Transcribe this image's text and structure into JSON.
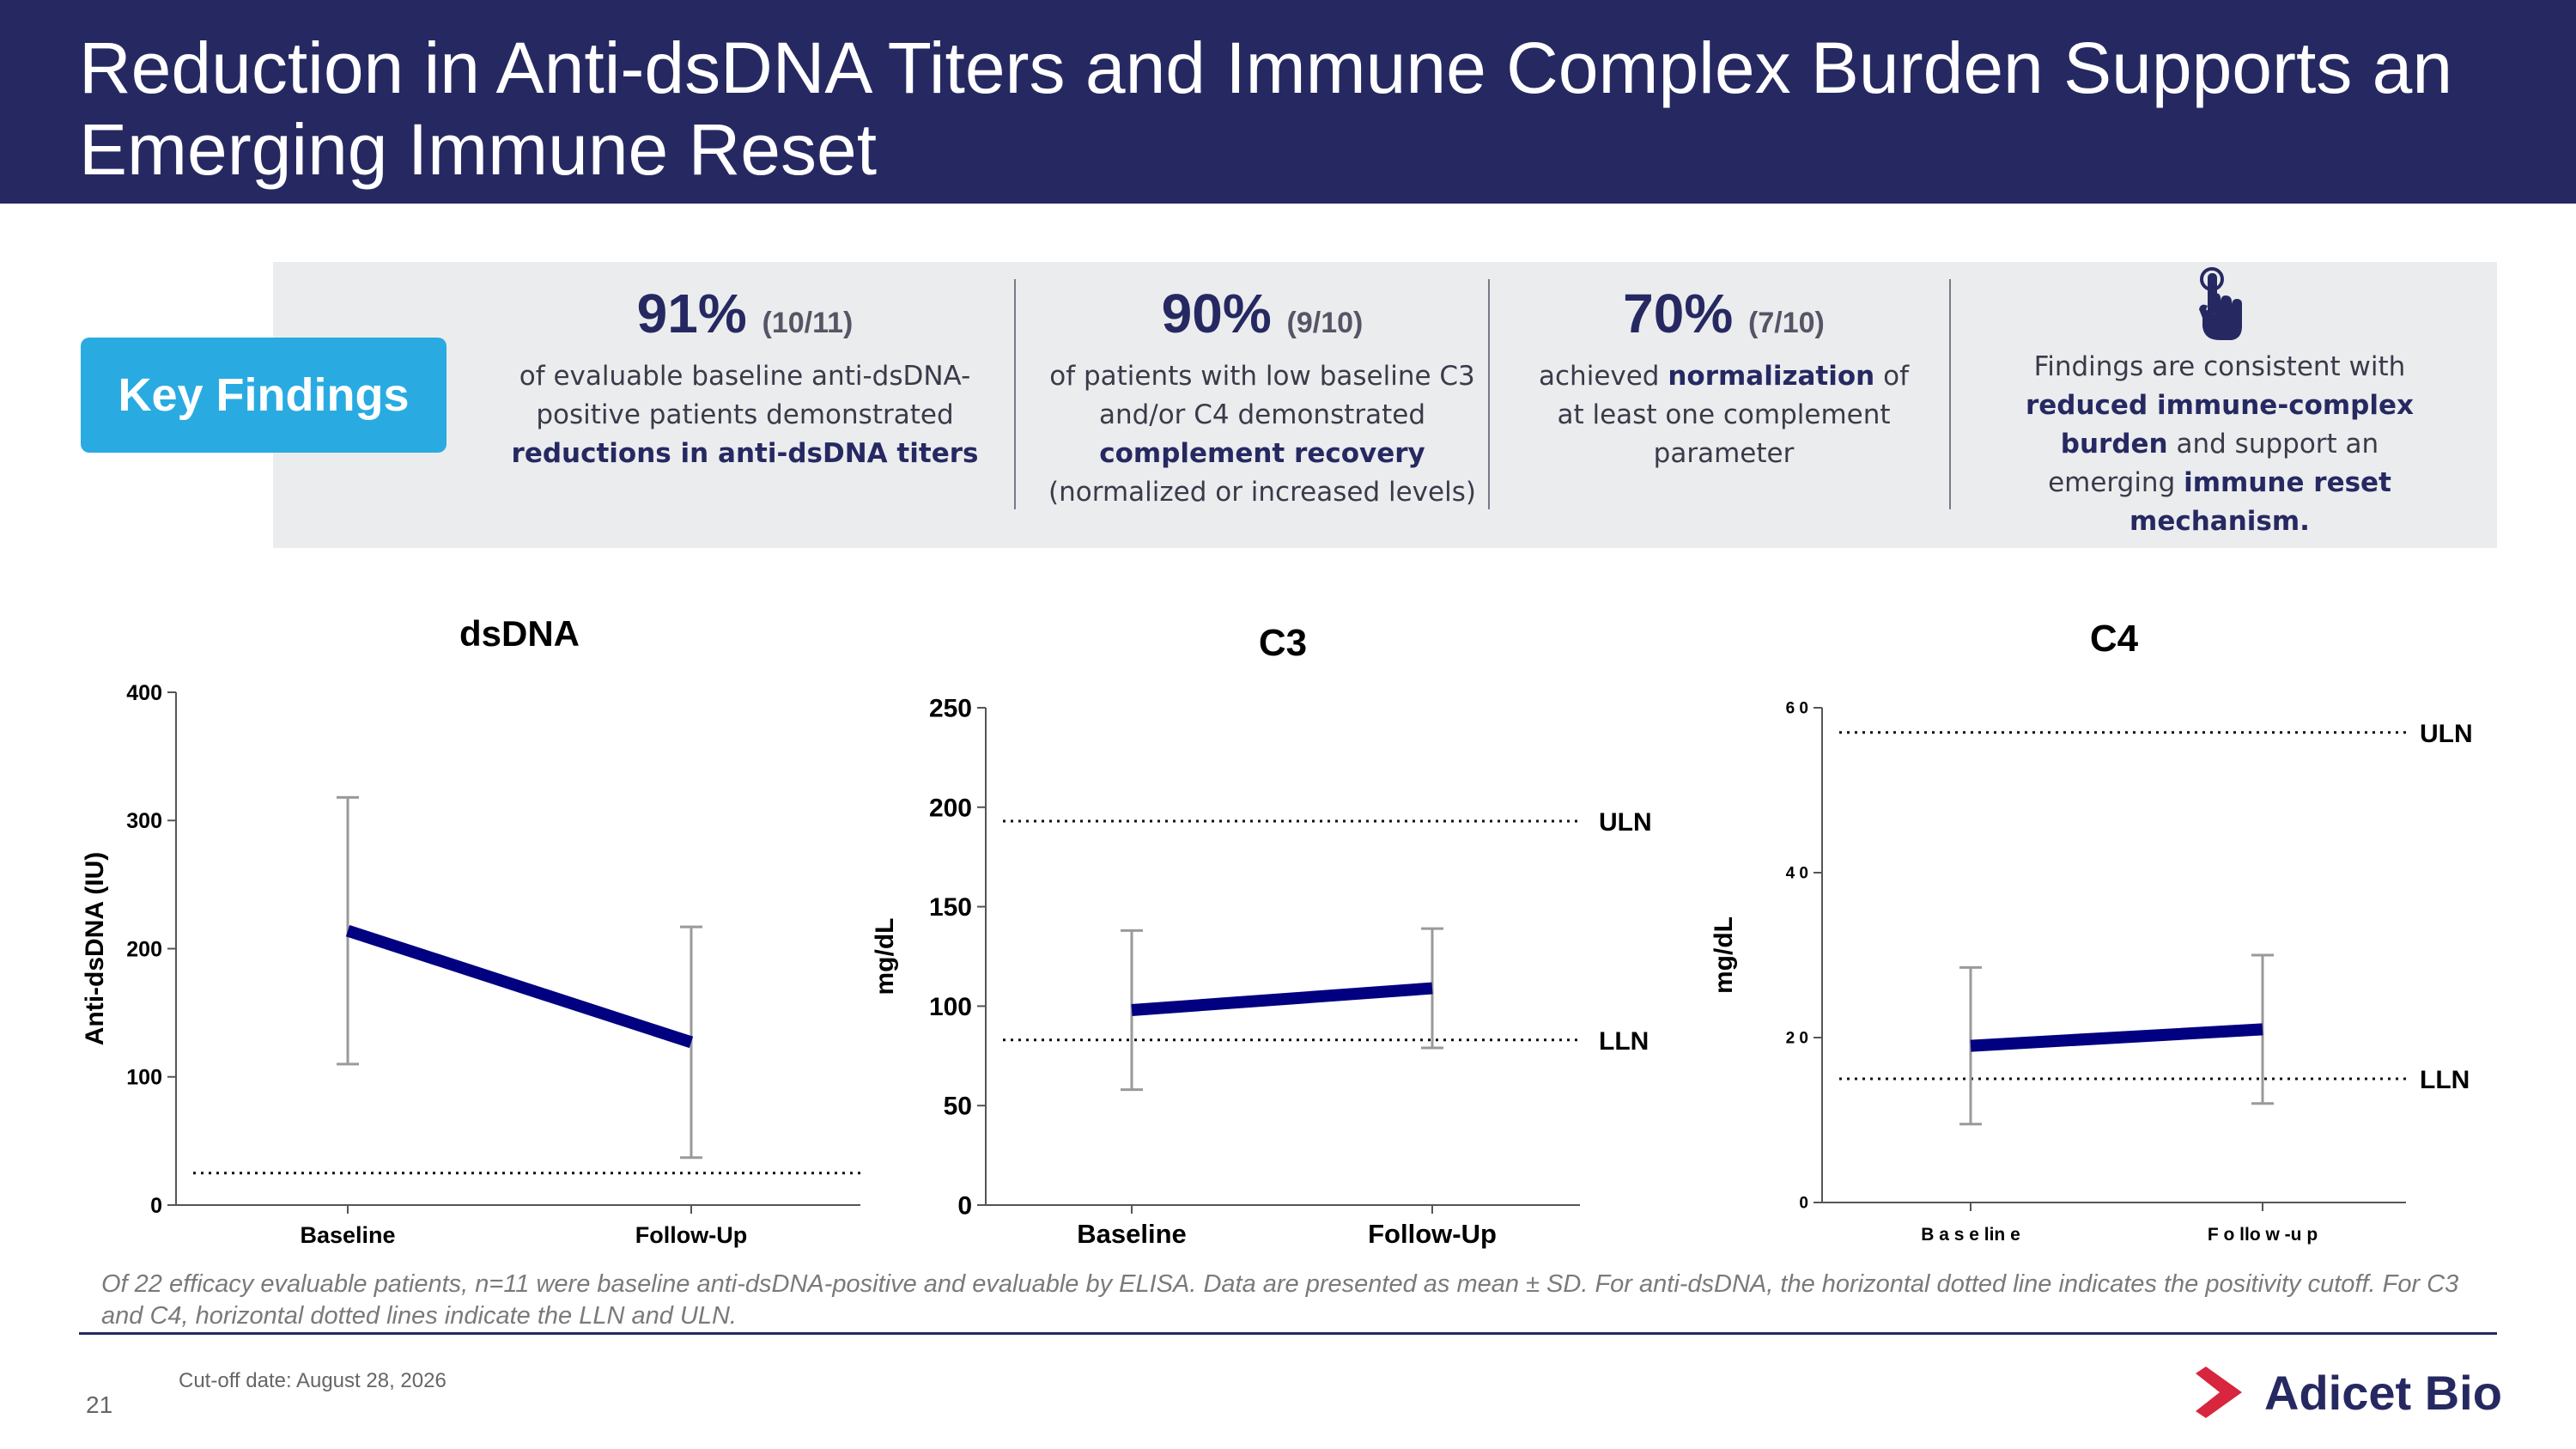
{
  "slide": {
    "title": "Reduction in Anti-dsDNA Titers and Immune Complex Burden Supports an Emerging Immune Reset",
    "page_number": "21",
    "cutoff": "Cut-off date: August 28, 2026",
    "footnote": "Of 22 efficacy evaluable patients, n=11 were baseline anti-dsDNA-positive and evaluable by ELISA. Data are presented as mean ± SD. For anti-dsDNA, the horizontal dotted line indicates the positivity cutoff. For C3 and C4, horizontal dotted lines indicate the LLN and ULN.",
    "logo_text": "Adicet Bio",
    "colors": {
      "header": "#262961",
      "badge": "#29abe2",
      "panel": "#ebecee",
      "line": "#000080",
      "logo_red": "#d7263d"
    }
  },
  "findings": {
    "badge": "Key Findings",
    "items": [
      {
        "pct": "91%",
        "count": "(10/11)",
        "lines": [
          "of evaluable baseline anti-dsDNA-",
          "positive patients demonstrated",
          "**reductions in anti-dsDNA titers**"
        ]
      },
      {
        "pct": "90%",
        "count": "(9/10)",
        "lines": [
          "of patients with low baseline C3",
          "and/or C4 demonstrated",
          "**complement recovery**",
          "(normalized or increased levels)"
        ]
      },
      {
        "pct": "70%",
        "count": "(7/10)",
        "lines": [
          "achieved **normalization** of",
          "at least one complement",
          "parameter"
        ]
      }
    ],
    "consistent": {
      "icon": "hand-pointer-icon",
      "lines": [
        "Findings are consistent with",
        "**reduced immune-complex**",
        "**burden** and support an",
        "emerging **immune reset**",
        "**mechanism.**"
      ]
    }
  },
  "chart_data": [
    {
      "type": "line",
      "title": "dsDNA",
      "ylabel": "Anti-dsDNA (IU)",
      "xlabel": "",
      "categories": [
        "Baseline",
        "Follow-Up"
      ],
      "series": [
        {
          "values": [
            214,
            127
          ],
          "sd": [
            104,
            90
          ]
        }
      ],
      "ylim": [
        0,
        400
      ],
      "yticks": [
        "0",
        "100",
        "200",
        "300",
        "400"
      ],
      "reference_lines": [
        {
          "label": "",
          "value": 25
        }
      ],
      "grid": false,
      "legend": "none"
    },
    {
      "type": "line",
      "title": "C3",
      "ylabel": "mg/dL",
      "xlabel": "",
      "categories": [
        "Baseline",
        "Follow-Up"
      ],
      "series": [
        {
          "values": [
            98,
            109
          ],
          "sd": [
            40,
            30
          ]
        }
      ],
      "ylim": [
        0,
        250
      ],
      "yticks": [
        "0",
        "50",
        "100",
        "150",
        "200",
        "250"
      ],
      "reference_lines": [
        {
          "label": "ULN",
          "value": 193
        },
        {
          "label": "LLN",
          "value": 83
        }
      ],
      "grid": false,
      "legend": "none"
    },
    {
      "type": "line",
      "title": "C4",
      "ylabel": "mg/dL",
      "xlabel": "",
      "categories": [
        "B a s e lin e",
        "F o llo w -u p"
      ],
      "series": [
        {
          "values": [
            19,
            21
          ],
          "sd": [
            9.5,
            9
          ]
        }
      ],
      "ylim": [
        0,
        60
      ],
      "yticks": [
        "0",
        "2 0",
        "4 0",
        "6 0"
      ],
      "reference_lines": [
        {
          "label": "ULN",
          "value": 57
        },
        {
          "label": "LLN",
          "value": 15
        }
      ],
      "grid": false,
      "legend": "none"
    }
  ]
}
